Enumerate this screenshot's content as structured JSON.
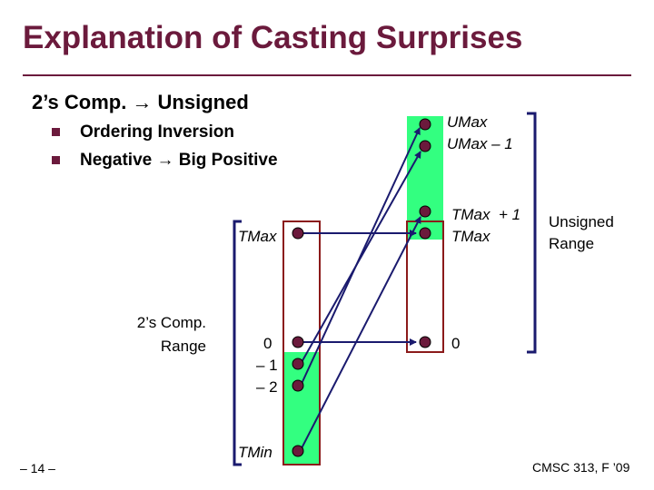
{
  "title": "Explanation of Casting Surprises",
  "heading": "2’s Comp. → Unsigned",
  "bullets": [
    "Ordering Inversion",
    "Negative → Big Positive"
  ],
  "left_axis": {
    "range_label_line1": "2’s Comp.",
    "range_label_line2": "Range",
    "tmax": "TMax",
    "zero": "0",
    "minus1": "– 1",
    "minus2": "– 2",
    "tmin": "TMin"
  },
  "right_axis": {
    "umax": "UMax",
    "umax_minus_1": "UMax – 1",
    "tmax_plus_1": "TMax  + 1",
    "tmax": "TMax",
    "zero": "0",
    "range_label_line1": "Unsigned",
    "range_label_line2": "Range"
  },
  "footer": {
    "slide_number": "– 14 –",
    "course": "CMSC 313, F ’09"
  },
  "colors": {
    "title": "#6b1a3c",
    "band": "#33ff80",
    "node": "#6b1a3c",
    "arrow": "#1a1a6e",
    "bracket": "#1a1a6e",
    "box": "#8b1a1a"
  }
}
